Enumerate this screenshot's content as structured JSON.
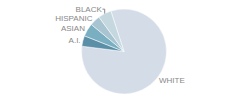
{
  "chart_data": {
    "type": "pie",
    "labels": [
      "WHITE",
      "A.I.",
      "ASIAN",
      "HISPANIC",
      "BLACK"
    ],
    "values": [
      82,
      4,
      5,
      4,
      5
    ],
    "colors": [
      "#d4dce8",
      "#5b8fa8",
      "#7aafc2",
      "#a8c4d0",
      "#c5d8e0"
    ]
  }
}
